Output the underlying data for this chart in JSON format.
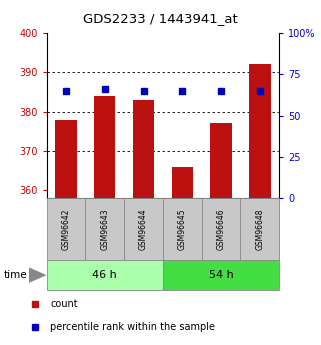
{
  "title": "GDS2233 / 1443941_at",
  "samples": [
    "GSM96642",
    "GSM96643",
    "GSM96644",
    "GSM96645",
    "GSM96646",
    "GSM96648"
  ],
  "count_values": [
    378,
    384,
    383,
    366,
    377,
    392
  ],
  "percentile_values": [
    65,
    66,
    65,
    65,
    65,
    65
  ],
  "ylim_left": [
    358,
    400
  ],
  "ylim_right": [
    0,
    100
  ],
  "yticks_left": [
    360,
    370,
    380,
    390,
    400
  ],
  "yticks_right": [
    0,
    25,
    50,
    75,
    100
  ],
  "ytick_labels_right": [
    "0",
    "25",
    "50",
    "75",
    "100%"
  ],
  "groups": [
    {
      "label": "46 h",
      "color": "#AAFFAA"
    },
    {
      "label": "54 h",
      "color": "#44DD44"
    }
  ],
  "bar_color": "#BB1111",
  "percentile_color": "#0000BB",
  "bar_width": 0.55,
  "bg_color": "#FFFFFF",
  "title_fontsize": 9.5,
  "tick_fontsize": 7,
  "sample_fontsize": 5.5,
  "group_fontsize": 8,
  "legend_fontsize": 7,
  "sample_bg_color": "#C8C8C8",
  "sample_edge_color": "#888888",
  "left_color": "#CC0000",
  "right_color": "#0000CC"
}
